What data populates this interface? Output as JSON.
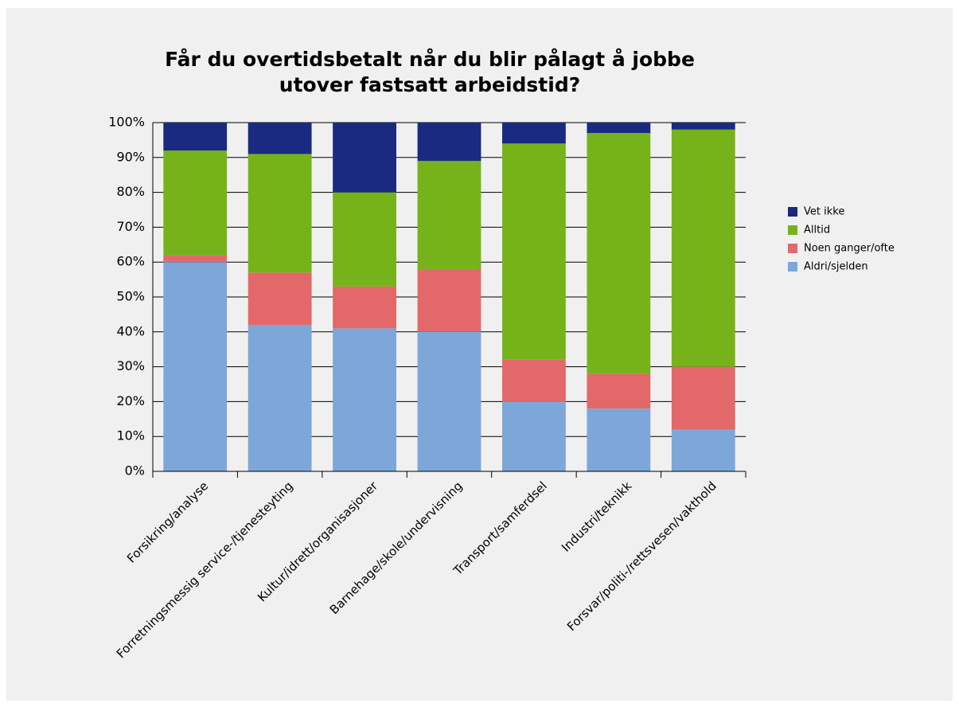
{
  "chart_data": {
    "type": "stacked_bar",
    "title": [
      "Får du overtidsbetalt når du blir pålagt å jobbe",
      "utover fastsatt arbeidstid?"
    ],
    "categories": [
      "Forsikring/analyse",
      "Forretningsmessig service-/tjenesteyting",
      "Kultur/idrett/organisasjoner",
      "Barnehage/skole/undervisning",
      "Transport/samferdsel",
      "Industri/teknikk",
      "Forsvar/politi-/rettsvesen/vakthold"
    ],
    "series": [
      {
        "name": "Aldri/sjelden",
        "color": "#7da7d8",
        "values": [
          60,
          42,
          41,
          40,
          20,
          18,
          12
        ]
      },
      {
        "name": "Noen ganger/ofte",
        "color": "#e2686a",
        "values": [
          2,
          15,
          12,
          18,
          12,
          10,
          18
        ]
      },
      {
        "name": "Alltid",
        "color": "#76b31b",
        "values": [
          30,
          34,
          27,
          31,
          62,
          69,
          68
        ]
      },
      {
        "name": "Vet ikke",
        "color": "#1a2a80",
        "values": [
          8,
          9,
          20,
          11,
          6,
          3,
          2
        ]
      }
    ],
    "ylim": [
      0,
      100
    ],
    "yticks": [
      {
        "value": 0,
        "label": "0%"
      },
      {
        "value": 10,
        "label": "10%"
      },
      {
        "value": 20,
        "label": "20%"
      },
      {
        "value": 30,
        "label": "30%"
      },
      {
        "value": 40,
        "label": "40%"
      },
      {
        "value": 50,
        "label": "50%"
      },
      {
        "value": 60,
        "label": "60%"
      },
      {
        "value": 70,
        "label": "70%"
      },
      {
        "value": 80,
        "label": "80%"
      },
      {
        "value": 90,
        "label": "90%"
      },
      {
        "value": 100,
        "label": "100%"
      }
    ],
    "grid": true,
    "legend": "right"
  }
}
